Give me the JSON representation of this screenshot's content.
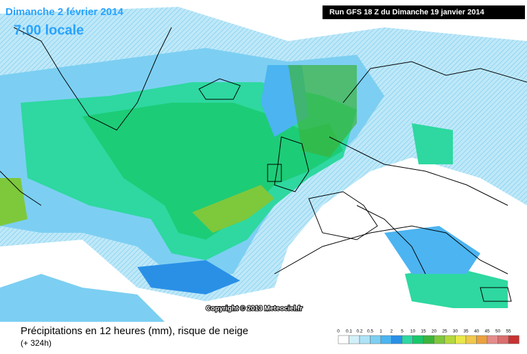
{
  "header": {
    "date": "Dimanche 2 février 2014",
    "time": "7:00 locale",
    "run": "Run GFS 18 Z du Dimanche 19 janvier 2014"
  },
  "copyright": "Copyright © 2013 Meteociel.fr",
  "footer": {
    "title": "Précipitations en 12 heures (mm), risque de neige",
    "lead": "(+ 324h)"
  },
  "legend": {
    "levels": [
      0,
      0.1,
      0.2,
      0.5,
      1,
      2,
      5,
      10,
      15,
      20,
      25,
      30,
      35,
      40,
      45,
      50,
      55
    ],
    "colors": [
      "#ffffff",
      "#d2f0fa",
      "#aee2f6",
      "#7ccff2",
      "#4cb4f0",
      "#2a90e6",
      "#2ed8a0",
      "#18c86a",
      "#3cb43c",
      "#7ec83c",
      "#b4d83c",
      "#e8e84a",
      "#f0c84a",
      "#eca040",
      "#e48c8c",
      "#dc6e6e",
      "#c83232"
    ]
  }
}
